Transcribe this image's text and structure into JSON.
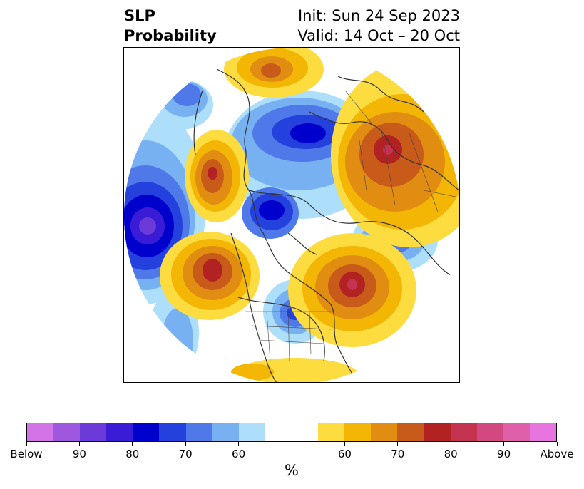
{
  "header": {
    "variable": "SLP",
    "product": "Probability",
    "init": "Init: Sun 24 Sep 2023",
    "valid": "Valid: 14 Oct – 20 Oct"
  },
  "map": {
    "projection": "north-polar-stereographic",
    "region": "Northern Hemisphere"
  },
  "colorbar": {
    "unit": "%",
    "colors": [
      "#d373e8",
      "#9e58e0",
      "#6c3ad9",
      "#3b1cd6",
      "#0000cc",
      "#2541dd",
      "#4f78e8",
      "#77b1f1",
      "#addffb",
      "#ffffff",
      "#ffffff",
      "#fddc40",
      "#f3b605",
      "#e08d12",
      "#c85a1a",
      "#b22222",
      "#c43451",
      "#d1497e",
      "#de60a8",
      "#e874e0"
    ],
    "labels": [
      "Below",
      "90",
      "80",
      "70",
      "60",
      "60",
      "70",
      "80",
      "90",
      "Above"
    ]
  }
}
